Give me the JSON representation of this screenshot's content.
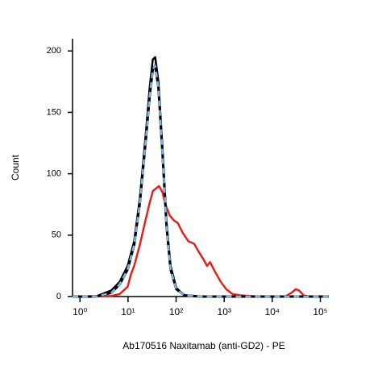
{
  "chart_data": {
    "type": "line",
    "x_label": "Ab170516 Naxitamab (anti-GD2) - PE",
    "y_label": "Count",
    "xscale": "log",
    "xlim": [
      0.7,
      150000
    ],
    "ylim": [
      0,
      210
    ],
    "xticks": [
      {
        "value": 1,
        "label": "10⁰"
      },
      {
        "value": 10,
        "label": "10¹"
      },
      {
        "value": 100,
        "label": "10²"
      },
      {
        "value": 1000,
        "label": "10³"
      },
      {
        "value": 10000,
        "label": "10⁴"
      },
      {
        "value": 100000,
        "label": "10⁵"
      }
    ],
    "yticks": [
      0,
      50,
      100,
      150,
      200
    ],
    "series": [
      {
        "color": "#e3201b",
        "dashed": false,
        "x": [
          0.7,
          4.5,
          6.7,
          9.8,
          11.5,
          13.4,
          17.6,
          23,
          28,
          33,
          38,
          44,
          52,
          60,
          74,
          90,
          108,
          137,
          180,
          237,
          300,
          375,
          440,
          510,
          650,
          850,
          1100,
          1500,
          2200,
          5000,
          18500,
          25000,
          31000,
          36000,
          45000,
          60000,
          150000
        ],
        "values": [
          0,
          0.5,
          2,
          8,
          18,
          25,
          42,
          62,
          76,
          86,
          88,
          90,
          85,
          75,
          66,
          62,
          60,
          52,
          45,
          43,
          36,
          30,
          25,
          28,
          20,
          12,
          6,
          2,
          1,
          0,
          0,
          3,
          6,
          5,
          1,
          0,
          0
        ]
      },
      {
        "color": "#000000",
        "dashed": false,
        "x": [
          0.7,
          2.1,
          4.5,
          6.7,
          9.8,
          13.4,
          17.6,
          23.1,
          28.1,
          32.7,
          36.8,
          42.9,
          52.1,
          63.2,
          76.8,
          101,
          149,
          322,
          150000
        ],
        "values": [
          0,
          0,
          5,
          12,
          25,
          45,
          80,
          130,
          170,
          193,
          195,
          175,
          120,
          60,
          25,
          7,
          1,
          0,
          0
        ]
      },
      {
        "color": "#7fb6e3",
        "dashed": true,
        "x": [
          0.7,
          2.1,
          4.5,
          6.7,
          9.8,
          13.4,
          17.6,
          23.1,
          28.1,
          32.7,
          36.8,
          42.9,
          52.1,
          63.2,
          76.8,
          101,
          149,
          322,
          150000
        ],
        "values": [
          0,
          0,
          3,
          10,
          22,
          42,
          76,
          125,
          163,
          185,
          188,
          170,
          116,
          57,
          22,
          6,
          1,
          0,
          0
        ]
      }
    ]
  }
}
